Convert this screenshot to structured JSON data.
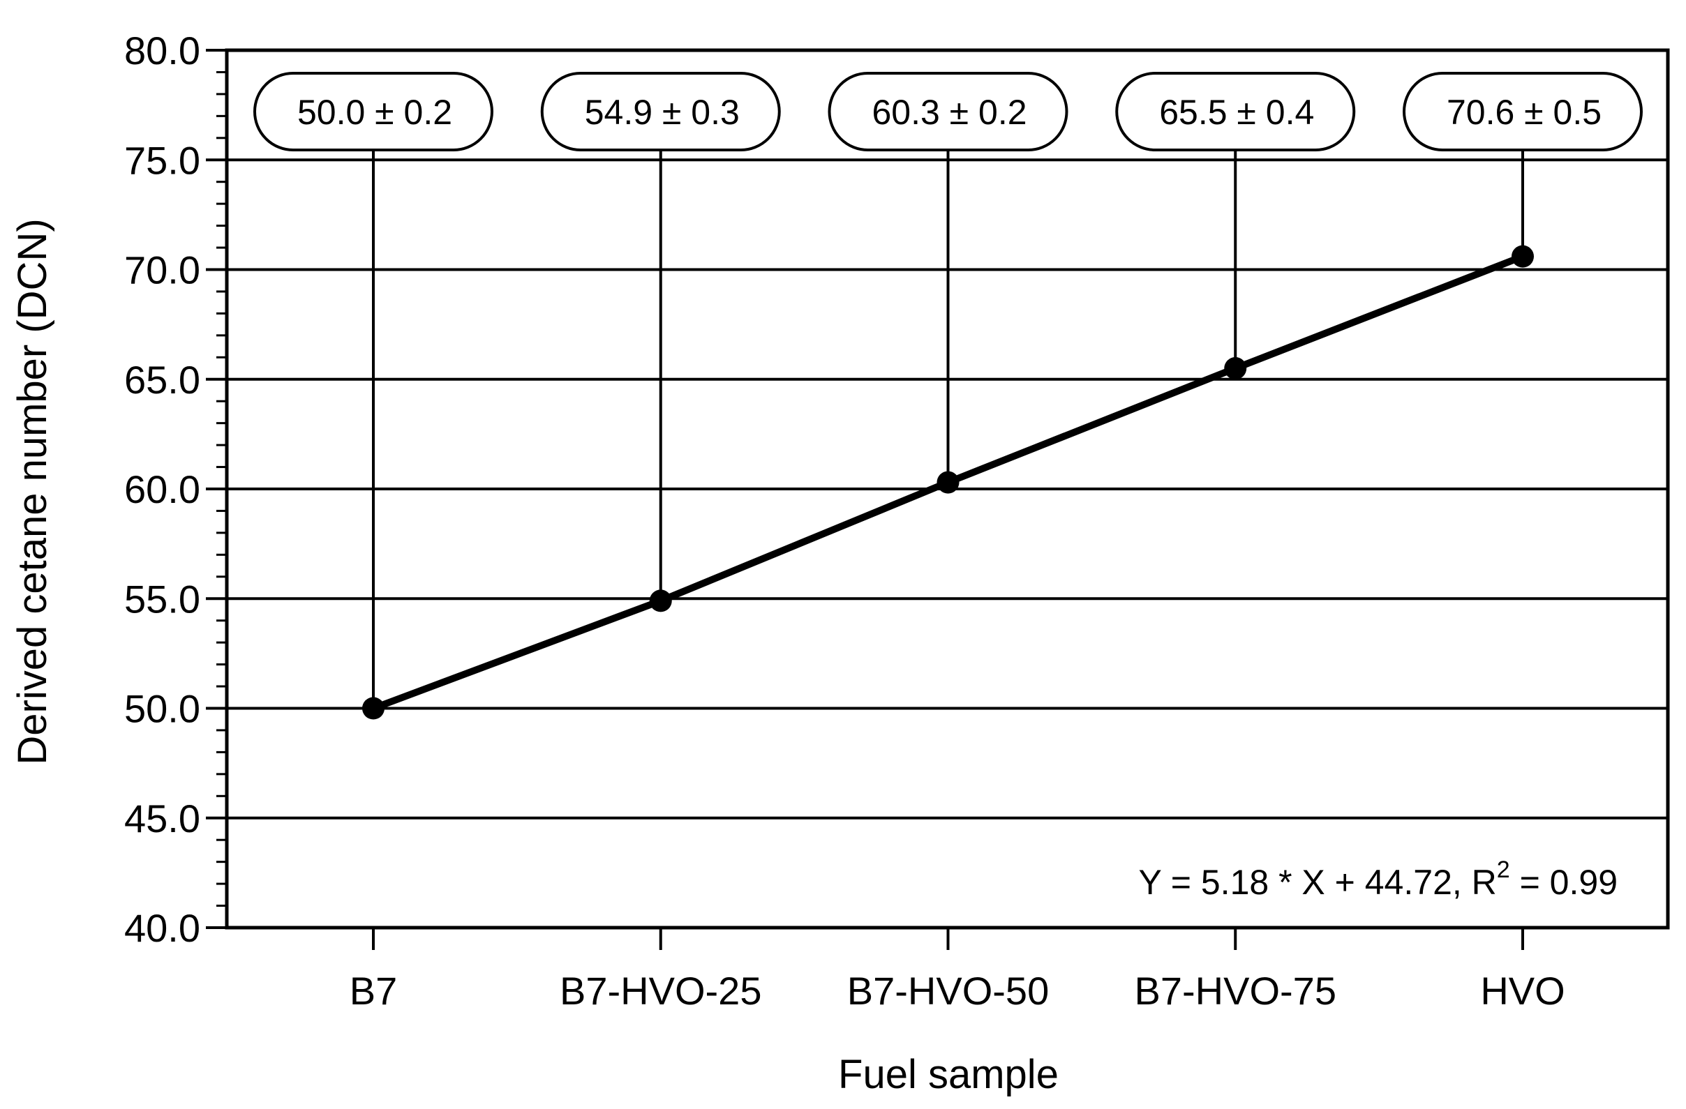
{
  "chart_data": {
    "type": "line",
    "categories": [
      "B7",
      "B7-HVO-25",
      "B7-HVO-50",
      "B7-HVO-75",
      "HVO"
    ],
    "values": [
      50.0,
      54.9,
      60.3,
      65.5,
      70.6
    ],
    "uncertainty": [
      0.2,
      0.3,
      0.2,
      0.4,
      0.5
    ],
    "point_labels": [
      "50.0 ± 0.2",
      "54.9 ± 0.3",
      "60.3 ± 0.2",
      "65.5 ± 0.4",
      "70.6 ± 0.5"
    ],
    "xlabel": "Fuel sample",
    "ylabel": "Derived cetane number (DCN)",
    "ylim": [
      40.0,
      80.0
    ],
    "y_ticks": [
      "40.0",
      "45.0",
      "50.0",
      "55.0",
      "60.0",
      "65.0",
      "70.0",
      "75.0",
      "80.0"
    ],
    "y_minor_step": 1,
    "grid": true,
    "annotation": {
      "main": "Y = 5.18 * X + 44.72, R",
      "sup": "2",
      "tail": " = 0.99"
    }
  }
}
